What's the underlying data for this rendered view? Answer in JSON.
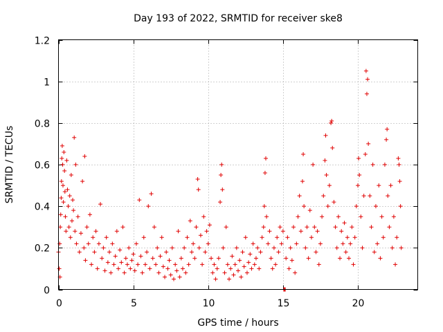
{
  "chart_data": {
    "type": "scatter",
    "title": "Day 193 of 2022, SRMTID for receiver ske8",
    "xlabel": "GPS time / hours",
    "ylabel": "SRMTID / TECUs",
    "xlim": [
      0,
      24
    ],
    "ylim": [
      0,
      1.2
    ],
    "xticks": [
      0,
      5,
      10,
      15,
      20
    ],
    "xtick_labels": [
      "0",
      "5",
      "10",
      "15",
      "20"
    ],
    "yticks": [
      0,
      0.2,
      0.4,
      0.6,
      0.8,
      1.0,
      1.2
    ],
    "ytick_labels": [
      "0",
      "0.2",
      "0.4",
      "0.6",
      "0.8",
      "1",
      "1.2"
    ],
    "grid": true,
    "marker": "+",
    "color": "#e00000",
    "series": [
      {
        "name": "SRMTID",
        "points": [
          [
            0.0,
            0.18
          ],
          [
            0.05,
            0.1
          ],
          [
            0.08,
            0.22
          ],
          [
            0.1,
            0.06
          ],
          [
            0.12,
            0.3
          ],
          [
            0.15,
            0.36
          ],
          [
            0.18,
            0.44
          ],
          [
            0.2,
            0.52
          ],
          [
            0.22,
            0.63
          ],
          [
            0.25,
            0.69
          ],
          [
            0.28,
            0.6
          ],
          [
            0.3,
            0.5
          ],
          [
            0.33,
            0.42
          ],
          [
            0.36,
            0.66
          ],
          [
            0.4,
            0.57
          ],
          [
            0.43,
            0.47
          ],
          [
            0.46,
            0.35
          ],
          [
            0.5,
            0.28
          ],
          [
            0.55,
            0.62
          ],
          [
            0.6,
            0.48
          ],
          [
            0.65,
            0.4
          ],
          [
            0.7,
            0.3
          ],
          [
            0.75,
            0.45
          ],
          [
            0.8,
            0.25
          ],
          [
            0.85,
            0.55
          ],
          [
            0.9,
            0.33
          ],
          [
            0.95,
            0.43
          ],
          [
            1.0,
            0.38
          ],
          [
            1.05,
            0.73
          ],
          [
            1.1,
            0.28
          ],
          [
            1.15,
            0.6
          ],
          [
            1.2,
            0.22
          ],
          [
            1.3,
            0.35
          ],
          [
            1.4,
            0.18
          ],
          [
            1.5,
            0.27
          ],
          [
            1.6,
            0.52
          ],
          [
            1.7,
            0.2
          ],
          [
            1.75,
            0.64
          ],
          [
            1.8,
            0.14
          ],
          [
            1.9,
            0.3
          ],
          [
            2.0,
            0.22
          ],
          [
            2.1,
            0.36
          ],
          [
            2.2,
            0.12
          ],
          [
            2.3,
            0.25
          ],
          [
            2.4,
            0.18
          ],
          [
            2.5,
            0.28
          ],
          [
            2.6,
            0.1
          ],
          [
            2.7,
            0.22
          ],
          [
            2.8,
            0.41
          ],
          [
            2.9,
            0.15
          ],
          [
            3.0,
            0.2
          ],
          [
            3.1,
            0.09
          ],
          [
            3.2,
            0.25
          ],
          [
            3.3,
            0.13
          ],
          [
            3.4,
            0.18
          ],
          [
            3.5,
            0.08
          ],
          [
            3.6,
            0.22
          ],
          [
            3.7,
            0.12
          ],
          [
            3.8,
            0.16
          ],
          [
            3.9,
            0.28
          ],
          [
            4.0,
            0.1
          ],
          [
            4.1,
            0.19
          ],
          [
            4.2,
            0.13
          ],
          [
            4.3,
            0.3
          ],
          [
            4.4,
            0.08
          ],
          [
            4.5,
            0.15
          ],
          [
            4.6,
            0.12
          ],
          [
            4.7,
            0.2
          ],
          [
            4.8,
            0.1
          ],
          [
            4.9,
            0.14
          ],
          [
            5.0,
            0.17
          ],
          [
            5.1,
            0.09
          ],
          [
            5.2,
            0.22
          ],
          [
            5.3,
            0.12
          ],
          [
            5.4,
            0.43
          ],
          [
            5.5,
            0.16
          ],
          [
            5.6,
            0.08
          ],
          [
            5.7,
            0.25
          ],
          [
            5.8,
            0.12
          ],
          [
            5.9,
            0.18
          ],
          [
            6.0,
            0.4
          ],
          [
            6.1,
            0.1
          ],
          [
            6.2,
            0.46
          ],
          [
            6.3,
            0.15
          ],
          [
            6.4,
            0.3
          ],
          [
            6.5,
            0.12
          ],
          [
            6.6,
            0.2
          ],
          [
            6.7,
            0.08
          ],
          [
            6.8,
            0.16
          ],
          [
            6.9,
            0.25
          ],
          [
            7.0,
            0.11
          ],
          [
            7.1,
            0.06
          ],
          [
            7.2,
            0.18
          ],
          [
            7.3,
            0.1
          ],
          [
            7.4,
            0.14
          ],
          [
            7.5,
            0.07
          ],
          [
            7.6,
            0.2
          ],
          [
            7.7,
            0.05
          ],
          [
            7.8,
            0.12
          ],
          [
            7.9,
            0.09
          ],
          [
            8.0,
            0.28
          ],
          [
            8.1,
            0.06
          ],
          [
            8.2,
            0.15
          ],
          [
            8.3,
            0.1
          ],
          [
            8.4,
            0.2
          ],
          [
            8.5,
            0.08
          ],
          [
            8.6,
            0.25
          ],
          [
            8.7,
            0.12
          ],
          [
            8.8,
            0.33
          ],
          [
            8.9,
            0.18
          ],
          [
            9.0,
            0.22
          ],
          [
            9.1,
            0.15
          ],
          [
            9.2,
            0.3
          ],
          [
            9.3,
            0.53
          ],
          [
            9.35,
            0.48
          ],
          [
            9.4,
            0.2
          ],
          [
            9.5,
            0.26
          ],
          [
            9.6,
            0.12
          ],
          [
            9.7,
            0.35
          ],
          [
            9.8,
            0.18
          ],
          [
            9.9,
            0.28
          ],
          [
            10.0,
            0.22
          ],
          [
            10.1,
            0.31
          ],
          [
            10.2,
            0.15
          ],
          [
            10.3,
            0.08
          ],
          [
            10.4,
            0.12
          ],
          [
            10.5,
            0.05
          ],
          [
            10.6,
            0.1
          ],
          [
            10.7,
            0.15
          ],
          [
            10.8,
            0.42
          ],
          [
            10.85,
            0.55
          ],
          [
            10.9,
            0.6
          ],
          [
            10.95,
            0.48
          ],
          [
            11.0,
            0.2
          ],
          [
            11.1,
            0.08
          ],
          [
            11.2,
            0.3
          ],
          [
            11.3,
            0.12
          ],
          [
            11.4,
            0.05
          ],
          [
            11.5,
            0.1
          ],
          [
            11.6,
            0.16
          ],
          [
            11.7,
            0.07
          ],
          [
            11.8,
            0.12
          ],
          [
            11.9,
            0.2
          ],
          [
            12.0,
            0.09
          ],
          [
            12.1,
            0.14
          ],
          [
            12.2,
            0.06
          ],
          [
            12.3,
            0.18
          ],
          [
            12.4,
            0.11
          ],
          [
            12.5,
            0.25
          ],
          [
            12.6,
            0.08
          ],
          [
            12.7,
            0.13
          ],
          [
            12.8,
            0.17
          ],
          [
            12.9,
            0.1
          ],
          [
            13.0,
            0.22
          ],
          [
            13.1,
            0.12
          ],
          [
            13.2,
            0.15
          ],
          [
            13.3,
            0.2
          ],
          [
            13.4,
            0.1
          ],
          [
            13.5,
            0.18
          ],
          [
            13.6,
            0.25
          ],
          [
            13.7,
            0.3
          ],
          [
            13.75,
            0.4
          ],
          [
            13.8,
            0.56
          ],
          [
            13.85,
            0.63
          ],
          [
            13.9,
            0.35
          ],
          [
            14.0,
            0.22
          ],
          [
            14.1,
            0.28
          ],
          [
            14.2,
            0.15
          ],
          [
            14.3,
            0.1
          ],
          [
            14.4,
            0.2
          ],
          [
            14.5,
            0.12
          ],
          [
            14.6,
            0.25
          ],
          [
            14.7,
            0.18
          ],
          [
            14.8,
            0.3
          ],
          [
            14.9,
            0.22
          ],
          [
            15.0,
            0.28
          ],
          [
            15.05,
            0.0
          ],
          [
            15.1,
            0.0
          ],
          [
            15.15,
            0.0
          ],
          [
            15.2,
            0.15
          ],
          [
            15.3,
            0.25
          ],
          [
            15.4,
            0.1
          ],
          [
            15.5,
            0.2
          ],
          [
            15.6,
            0.14
          ],
          [
            15.7,
            0.3
          ],
          [
            15.8,
            0.08
          ],
          [
            15.9,
            0.22
          ],
          [
            16.0,
            0.35
          ],
          [
            16.1,
            0.45
          ],
          [
            16.2,
            0.28
          ],
          [
            16.3,
            0.52
          ],
          [
            16.35,
            0.65
          ],
          [
            16.4,
            0.4
          ],
          [
            16.5,
            0.2
          ],
          [
            16.6,
            0.3
          ],
          [
            16.7,
            0.15
          ],
          [
            16.8,
            0.38
          ],
          [
            16.9,
            0.25
          ],
          [
            17.0,
            0.6
          ],
          [
            17.1,
            0.3
          ],
          [
            17.2,
            0.18
          ],
          [
            17.3,
            0.28
          ],
          [
            17.4,
            0.12
          ],
          [
            17.5,
            0.22
          ],
          [
            17.6,
            0.35
          ],
          [
            17.7,
            0.45
          ],
          [
            17.8,
            0.62
          ],
          [
            17.85,
            0.74
          ],
          [
            17.9,
            0.55
          ],
          [
            18.0,
            0.4
          ],
          [
            18.1,
            0.5
          ],
          [
            18.2,
            0.8
          ],
          [
            18.25,
            0.81
          ],
          [
            18.3,
            0.68
          ],
          [
            18.4,
            0.42
          ],
          [
            18.5,
            0.3
          ],
          [
            18.6,
            0.2
          ],
          [
            18.7,
            0.35
          ],
          [
            18.8,
            0.15
          ],
          [
            18.9,
            0.28
          ],
          [
            19.0,
            0.22
          ],
          [
            19.1,
            0.32
          ],
          [
            19.2,
            0.18
          ],
          [
            19.3,
            0.25
          ],
          [
            19.4,
            0.15
          ],
          [
            19.5,
            0.22
          ],
          [
            19.6,
            0.3
          ],
          [
            19.7,
            0.12
          ],
          [
            19.8,
            0.25
          ],
          [
            19.9,
            0.4
          ],
          [
            20.0,
            0.5
          ],
          [
            20.05,
            0.63
          ],
          [
            20.1,
            0.55
          ],
          [
            20.2,
            0.35
          ],
          [
            20.3,
            0.2
          ],
          [
            20.4,
            0.45
          ],
          [
            20.5,
            0.65
          ],
          [
            20.55,
            1.05
          ],
          [
            20.6,
            0.94
          ],
          [
            20.65,
            1.01
          ],
          [
            20.7,
            0.7
          ],
          [
            20.8,
            0.45
          ],
          [
            20.9,
            0.3
          ],
          [
            21.0,
            0.6
          ],
          [
            21.1,
            0.18
          ],
          [
            21.2,
            0.4
          ],
          [
            21.3,
            0.22
          ],
          [
            21.4,
            0.5
          ],
          [
            21.5,
            0.15
          ],
          [
            21.6,
            0.35
          ],
          [
            21.7,
            0.25
          ],
          [
            21.8,
            0.6
          ],
          [
            21.9,
            0.72
          ],
          [
            21.95,
            0.77
          ],
          [
            22.0,
            0.45
          ],
          [
            22.1,
            0.3
          ],
          [
            22.2,
            0.5
          ],
          [
            22.3,
            0.2
          ],
          [
            22.4,
            0.35
          ],
          [
            22.5,
            0.12
          ],
          [
            22.6,
            0.25
          ],
          [
            22.7,
            0.63
          ],
          [
            22.75,
            0.6
          ],
          [
            22.8,
            0.52
          ],
          [
            22.85,
            0.4
          ],
          [
            22.9,
            0.2
          ]
        ]
      }
    ]
  }
}
